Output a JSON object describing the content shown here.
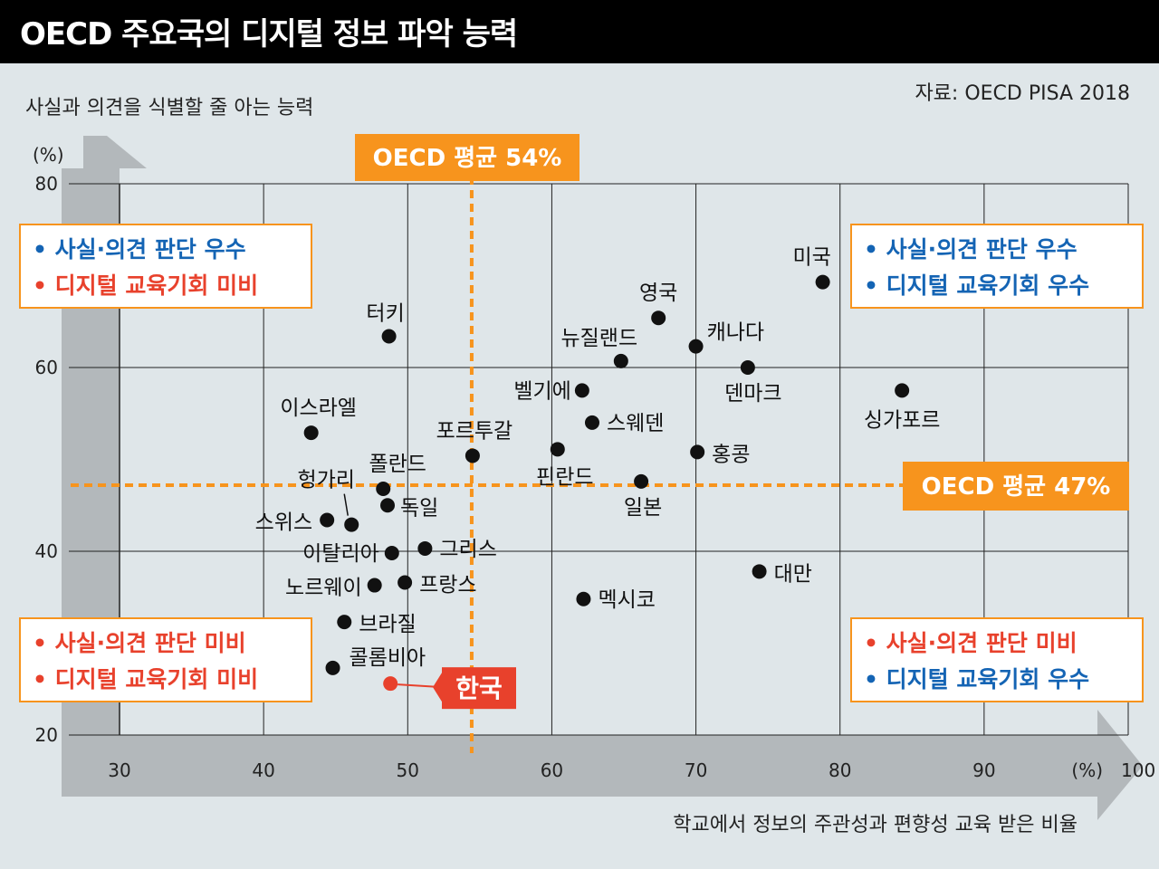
{
  "title": "OECD 주요국의 디지털 정보 파악 능력",
  "source": "자료: OECD PISA 2018",
  "colors": {
    "accent": "#f7941d",
    "korea": "#e8412c",
    "blue": "#1464b4",
    "red": "#e8412c",
    "grid": "#222222",
    "background": "#dfe6e9"
  },
  "chart_data": {
    "type": "scatter",
    "title": "OECD 주요국의 디지털 정보 파악 능력",
    "xlabel": "학교에서 정보의 주관성과 편향성 교육 받은 비율",
    "ylabel": "사실과 의견을 식별할 줄 아는 능력",
    "x_unit": "(%)",
    "y_unit": "(%)",
    "xlim": [
      30,
      100
    ],
    "ylim": [
      20,
      80
    ],
    "x_ticks": [
      30,
      40,
      50,
      60,
      70,
      80,
      90,
      100
    ],
    "y_ticks": [
      20,
      40,
      60,
      80
    ],
    "grid": true,
    "ref_lines": [
      {
        "axis": "x",
        "value": 54,
        "label": "OECD 평균 54%"
      },
      {
        "axis": "y",
        "value": 47,
        "label": "OECD 평균 47%"
      }
    ],
    "points": [
      {
        "name": "미국",
        "x": 78.8,
        "y": 69.3
      },
      {
        "name": "영국",
        "x": 67.4,
        "y": 65.4
      },
      {
        "name": "캐나다",
        "x": 70.0,
        "y": 62.3
      },
      {
        "name": "뉴질랜드",
        "x": 64.8,
        "y": 60.7
      },
      {
        "name": "덴마크",
        "x": 73.6,
        "y": 60.0
      },
      {
        "name": "터키",
        "x": 48.7,
        "y": 63.4
      },
      {
        "name": "싱가포르",
        "x": 84.3,
        "y": 57.5
      },
      {
        "name": "벨기에",
        "x": 62.1,
        "y": 57.5
      },
      {
        "name": "스웨덴",
        "x": 62.8,
        "y": 54.0
      },
      {
        "name": "이스라엘",
        "x": 43.3,
        "y": 52.9
      },
      {
        "name": "포르투갈",
        "x": 54.5,
        "y": 50.4
      },
      {
        "name": "핀란드",
        "x": 60.4,
        "y": 51.1
      },
      {
        "name": "홍콩",
        "x": 70.1,
        "y": 50.8
      },
      {
        "name": "일본",
        "x": 66.2,
        "y": 47.6
      },
      {
        "name": "폴란드",
        "x": 48.3,
        "y": 46.8
      },
      {
        "name": "헝가리",
        "x": 46.1,
        "y": 42.9
      },
      {
        "name": "독일",
        "x": 48.6,
        "y": 45.0
      },
      {
        "name": "스위스",
        "x": 44.4,
        "y": 43.4
      },
      {
        "name": "이탈리아",
        "x": 48.9,
        "y": 39.8
      },
      {
        "name": "그리스",
        "x": 51.2,
        "y": 40.3
      },
      {
        "name": "노르웨이",
        "x": 47.7,
        "y": 36.3
      },
      {
        "name": "프랑스",
        "x": 49.8,
        "y": 36.6
      },
      {
        "name": "대만",
        "x": 74.4,
        "y": 37.8
      },
      {
        "name": "멕시코",
        "x": 62.2,
        "y": 34.8
      },
      {
        "name": "브라질",
        "x": 45.6,
        "y": 32.3
      },
      {
        "name": "콜롬비아",
        "x": 44.8,
        "y": 27.3
      },
      {
        "name": "한국",
        "x": 48.8,
        "y": 25.6,
        "highlight": true
      }
    ],
    "quadrants": {
      "top_left": [
        {
          "text": "• 사실·의견 판단 우수",
          "tone": "blue"
        },
        {
          "text": "• 디지털 교육기회 미비",
          "tone": "red"
        }
      ],
      "top_right": [
        {
          "text": "• 사실·의견 판단 우수",
          "tone": "blue"
        },
        {
          "text": "• 디지털 교육기회 우수",
          "tone": "blue"
        }
      ],
      "bottom_left": [
        {
          "text": "• 사실·의견 판단 미비",
          "tone": "red"
        },
        {
          "text": "• 디지털 교육기회 미비",
          "tone": "red"
        }
      ],
      "bottom_right": [
        {
          "text": "• 사실·의견 판단 미비",
          "tone": "red"
        },
        {
          "text": "• 디지털 교육기회 우수",
          "tone": "blue"
        }
      ]
    }
  }
}
